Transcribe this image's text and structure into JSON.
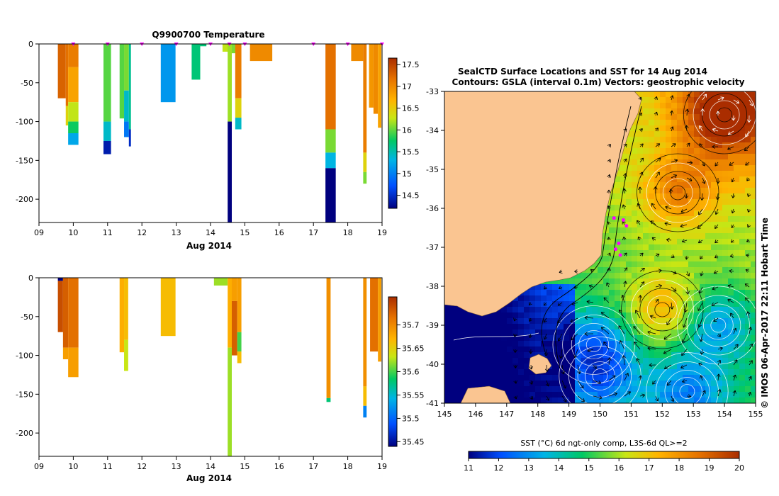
{
  "top_panel": {
    "title": "Q9900700  Temperature",
    "xlabel": "Aug 2014",
    "x_ticks": [
      "09",
      "10",
      "11",
      "12",
      "13",
      "14",
      "15",
      "16",
      "17",
      "18",
      "19"
    ],
    "y_ticks": [
      "0",
      "-50",
      "-100",
      "-150",
      "-200"
    ],
    "colorbar_ticks": [
      "17.5",
      "17",
      "16.5",
      "16",
      "15.5",
      "15",
      "14.5"
    ]
  },
  "bottom_panel": {
    "xlabel": "Aug 2014",
    "x_ticks": [
      "09",
      "10",
      "11",
      "12",
      "13",
      "14",
      "15",
      "16",
      "17",
      "18",
      "19"
    ],
    "y_ticks": [
      "0",
      "-50",
      "-100",
      "-150",
      "-200"
    ],
    "colorbar_ticks": [
      "35.7",
      "35.65",
      "35.6",
      "35.55",
      "35.5",
      "35.45"
    ]
  },
  "map_panel": {
    "title_line1": "SealCTD Surface Locations and SST for 14 Aug 2014",
    "title_line2": "Contours: GSLA (interval 0.1m) Vectors: geostrophic velocity",
    "x_ticks": [
      "145",
      "146",
      "147",
      "148",
      "149",
      "150",
      "151",
      "152",
      "153",
      "154",
      "155"
    ],
    "y_ticks": [
      "-33",
      "-34",
      "-35",
      "-36",
      "-37",
      "-38",
      "-39",
      "-40",
      "-41"
    ],
    "side_text": "© IMOS 06-Apr-2017 22:11 Hobart Time",
    "colorbar_label": "SST (°C) 6d ngt-only comp, L3S-6d QL>=2",
    "colorbar_ticks": [
      "11",
      "12",
      "13",
      "14",
      "15",
      "16",
      "17",
      "18",
      "19",
      "20"
    ]
  },
  "chart_data": [
    {
      "type": "heatmap",
      "title": "Q9900700  Temperature",
      "xlabel": "Aug 2014",
      "ylabel": "",
      "xlim": [
        9,
        19
      ],
      "ylim": [
        -230,
        0
      ],
      "colorbar_range": [
        14.0,
        17.7
      ],
      "profiles": [
        {
          "x0": 9.55,
          "x1": 9.78,
          "segments": [
            {
              "d0": 0,
              "d1": 70,
              "v": 17.3
            }
          ]
        },
        {
          "x0": 9.78,
          "x1": 9.85,
          "segments": [
            {
              "d0": 0,
              "d1": 80,
              "v": 17.2
            },
            {
              "d0": 80,
              "d1": 105,
              "v": 16.4
            }
          ]
        },
        {
          "x0": 9.85,
          "x1": 10.15,
          "segments": [
            {
              "d0": 0,
              "d1": 30,
              "v": 17.1
            },
            {
              "d0": 30,
              "d1": 75,
              "v": 16.8
            },
            {
              "d0": 75,
              "d1": 100,
              "v": 16.2
            },
            {
              "d0": 100,
              "d1": 115,
              "v": 15.7
            },
            {
              "d0": 115,
              "d1": 130,
              "v": 15.1
            }
          ]
        },
        {
          "x0": 10.88,
          "x1": 11.1,
          "segments": [
            {
              "d0": 0,
              "d1": 100,
              "v": 15.9
            },
            {
              "d0": 100,
              "d1": 125,
              "v": 15.3
            },
            {
              "d0": 125,
              "d1": 142,
              "v": 14.2
            }
          ]
        },
        {
          "x0": 11.35,
          "x1": 11.48,
          "segments": [
            {
              "d0": 0,
              "d1": 96,
              "v": 15.9
            }
          ]
        },
        {
          "x0": 11.48,
          "x1": 11.62,
          "segments": [
            {
              "d0": 0,
              "d1": 60,
              "v": 16.0
            },
            {
              "d0": 60,
              "d1": 100,
              "v": 15.3
            },
            {
              "d0": 100,
              "d1": 120,
              "v": 14.8
            }
          ]
        },
        {
          "x0": 11.62,
          "x1": 11.68,
          "segments": [
            {
              "d0": 0,
              "d1": 110,
              "v": 15.5
            },
            {
              "d0": 110,
              "d1": 132,
              "v": 14.3
            }
          ]
        },
        {
          "x0": 12.55,
          "x1": 12.98,
          "segments": [
            {
              "d0": 0,
              "d1": 75,
              "v": 15.0
            }
          ]
        },
        {
          "x0": 13.45,
          "x1": 13.7,
          "segments": [
            {
              "d0": 0,
              "d1": 46,
              "v": 15.6
            }
          ]
        },
        {
          "x0": 13.7,
          "x1": 13.88,
          "segments": [
            {
              "d0": 0,
              "d1": 3,
              "v": 15.6
            }
          ]
        },
        {
          "x0": 14.35,
          "x1": 14.6,
          "segments": [
            {
              "d0": 0,
              "d1": 10,
              "v": 16.2
            }
          ]
        },
        {
          "x0": 14.5,
          "x1": 14.62,
          "segments": [
            {
              "d0": 0,
              "d1": 100,
              "v": 16.1
            },
            {
              "d0": 100,
              "d1": 230,
              "v": 14.0
            }
          ]
        },
        {
          "x0": 14.62,
          "x1": 14.78,
          "segments": [
            {
              "d0": 0,
              "d1": 12,
              "v": 16.0
            }
          ]
        },
        {
          "x0": 14.72,
          "x1": 14.9,
          "segments": [
            {
              "d0": 0,
              "d1": 70,
              "v": 17.1
            },
            {
              "d0": 70,
              "d1": 95,
              "v": 16.4
            },
            {
              "d0": 95,
              "d1": 110,
              "v": 15.3
            }
          ]
        },
        {
          "x0": 15.15,
          "x1": 15.8,
          "segments": [
            {
              "d0": 0,
              "d1": 22,
              "v": 17.0
            }
          ]
        },
        {
          "x0": 17.35,
          "x1": 17.65,
          "segments": [
            {
              "d0": 0,
              "d1": 110,
              "v": 17.2
            },
            {
              "d0": 110,
              "d1": 140,
              "v": 16.0
            },
            {
              "d0": 140,
              "d1": 160,
              "v": 15.2
            },
            {
              "d0": 160,
              "d1": 230,
              "v": 14.0
            }
          ]
        },
        {
          "x0": 18.1,
          "x1": 18.45,
          "segments": [
            {
              "d0": 0,
              "d1": 22,
              "v": 17.0
            }
          ]
        },
        {
          "x0": 18.45,
          "x1": 18.55,
          "segments": [
            {
              "d0": 0,
              "d1": 140,
              "v": 17.1
            },
            {
              "d0": 140,
              "d1": 165,
              "v": 16.4
            },
            {
              "d0": 165,
              "d1": 180,
              "v": 16.0
            }
          ]
        },
        {
          "x0": 18.62,
          "x1": 18.75,
          "segments": [
            {
              "d0": 0,
              "d1": 82,
              "v": 16.9
            }
          ]
        },
        {
          "x0": 18.75,
          "x1": 18.88,
          "segments": [
            {
              "d0": 0,
              "d1": 90,
              "v": 17.0
            }
          ]
        },
        {
          "x0": 18.88,
          "x1": 18.98,
          "segments": [
            {
              "d0": 0,
              "d1": 108,
              "v": 16.8
            }
          ]
        }
      ],
      "surface_markers_x": [
        10.0,
        11.0,
        12.0,
        13.0,
        14.0,
        14.55,
        15.0,
        17.0,
        18.0,
        19.0
      ]
    },
    {
      "type": "heatmap",
      "title": "",
      "xlabel": "Aug 2014",
      "ylabel": "",
      "xlim": [
        9,
        19
      ],
      "ylim": [
        -230,
        0
      ],
      "colorbar_range": [
        35.45,
        35.75
      ],
      "profiles": [
        {
          "x0": 9.55,
          "x1": 9.7,
          "segments": [
            {
              "d0": 0,
              "d1": 4,
              "v": 35.45
            },
            {
              "d0": 4,
              "d1": 70,
              "v": 35.73
            }
          ]
        },
        {
          "x0": 9.7,
          "x1": 9.85,
          "segments": [
            {
              "d0": 0,
              "d1": 90,
              "v": 35.72
            },
            {
              "d0": 90,
              "d1": 105,
              "v": 35.68
            }
          ]
        },
        {
          "x0": 9.85,
          "x1": 10.15,
          "segments": [
            {
              "d0": 0,
              "d1": 90,
              "v": 35.71
            },
            {
              "d0": 90,
              "d1": 128,
              "v": 35.68
            }
          ]
        },
        {
          "x0": 11.35,
          "x1": 11.48,
          "segments": [
            {
              "d0": 0,
              "d1": 96,
              "v": 35.67
            }
          ]
        },
        {
          "x0": 11.48,
          "x1": 11.6,
          "segments": [
            {
              "d0": 0,
              "d1": 80,
              "v": 35.66
            },
            {
              "d0": 80,
              "d1": 120,
              "v": 35.63
            }
          ]
        },
        {
          "x0": 12.55,
          "x1": 12.98,
          "segments": [
            {
              "d0": 0,
              "d1": 75,
              "v": 35.66
            }
          ]
        },
        {
          "x0": 14.1,
          "x1": 14.5,
          "segments": [
            {
              "d0": 0,
              "d1": 10,
              "v": 35.62
            }
          ]
        },
        {
          "x0": 14.5,
          "x1": 14.62,
          "segments": [
            {
              "d0": 0,
              "d1": 90,
              "v": 35.67
            },
            {
              "d0": 90,
              "d1": 230,
              "v": 35.62
            }
          ]
        },
        {
          "x0": 14.62,
          "x1": 14.78,
          "segments": [
            {
              "d0": 0,
              "d1": 30,
              "v": 35.68
            },
            {
              "d0": 30,
              "d1": 100,
              "v": 35.72
            }
          ]
        },
        {
          "x0": 14.78,
          "x1": 14.9,
          "segments": [
            {
              "d0": 0,
              "d1": 70,
              "v": 35.68
            },
            {
              "d0": 70,
              "d1": 95,
              "v": 35.6
            },
            {
              "d0": 95,
              "d1": 110,
              "v": 35.66
            }
          ]
        },
        {
          "x0": 17.38,
          "x1": 17.5,
          "segments": [
            {
              "d0": 0,
              "d1": 155,
              "v": 35.69
            },
            {
              "d0": 155,
              "d1": 160,
              "v": 35.58
            }
          ]
        },
        {
          "x0": 18.45,
          "x1": 18.55,
          "segments": [
            {
              "d0": 0,
              "d1": 140,
              "v": 35.69
            },
            {
              "d0": 140,
              "d1": 165,
              "v": 35.66
            },
            {
              "d0": 165,
              "d1": 180,
              "v": 35.52
            }
          ]
        },
        {
          "x0": 18.65,
          "x1": 18.88,
          "segments": [
            {
              "d0": 0,
              "d1": 95,
              "v": 35.71
            }
          ]
        },
        {
          "x0": 18.88,
          "x1": 18.98,
          "segments": [
            {
              "d0": 0,
              "d1": 108,
              "v": 35.68
            }
          ]
        }
      ]
    },
    {
      "type": "heatmap",
      "title": "SealCTD Surface Locations and SST for 14 Aug 2014",
      "subtitle": "Contours: GSLA (interval 0.1m) Vectors: geostrophic velocity",
      "xlabel": "",
      "ylabel": "",
      "xlim": [
        145,
        155
      ],
      "ylim": [
        -41,
        -33
      ],
      "colorbar_label": "SST (°C) 6d ngt-only comp, L3S-6d QL>=2",
      "colorbar_range": [
        11,
        20
      ],
      "eddies": [
        {
          "lon": 154.0,
          "lat": -33.6,
          "kind": "warm"
        },
        {
          "lon": 152.5,
          "lat": -35.6,
          "kind": "warm"
        },
        {
          "lon": 152.0,
          "lat": -38.6,
          "kind": "warm"
        },
        {
          "lon": 153.8,
          "lat": -39.0,
          "kind": "cold"
        },
        {
          "lon": 152.8,
          "lat": -40.7,
          "kind": "cold"
        },
        {
          "lon": 149.8,
          "lat": -39.5,
          "kind": "cold"
        },
        {
          "lon": 150.0,
          "lat": -40.3,
          "kind": "cold"
        }
      ],
      "seal_locations": [
        {
          "lon": 150.85,
          "lat": -36.45
        },
        {
          "lon": 150.75,
          "lat": -36.3
        },
        {
          "lon": 150.6,
          "lat": -36.9
        },
        {
          "lon": 150.5,
          "lat": -37.05
        },
        {
          "lon": 150.45,
          "lat": -36.25
        },
        {
          "lon": 150.65,
          "lat": -37.2
        }
      ]
    }
  ]
}
